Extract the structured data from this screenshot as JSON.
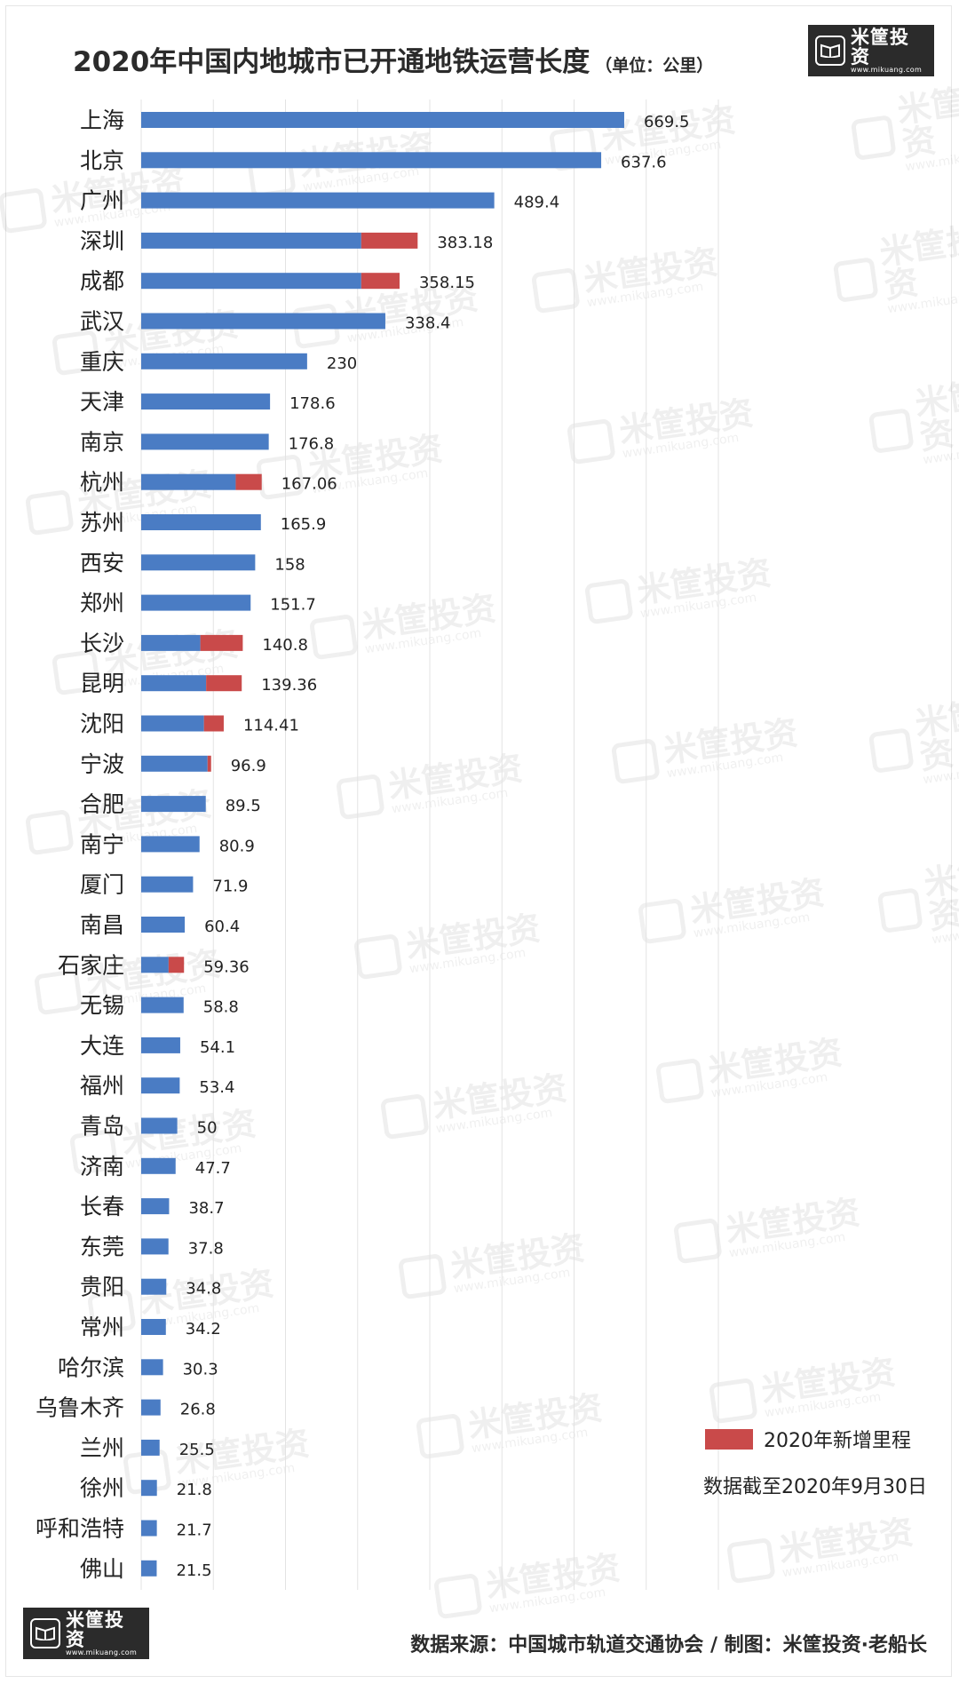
{
  "header": {
    "title": "2020年中国内地城市已开通地铁运营长度",
    "unit": "（单位：公里）"
  },
  "logo": {
    "name": "米筐投资",
    "url": "www.mikuang.com"
  },
  "watermark": {
    "name": "米筐投资",
    "url": "www.mikuang.com"
  },
  "legend": {
    "new_label": "2020年新增里程"
  },
  "footer": {
    "note": "数据截至2020年9月30日",
    "source": "数据来源：中国城市轨道交通协会 / 制图：米筐投资·老船长"
  },
  "colors": {
    "base": "#4a7cc4",
    "new": "#c94a4a",
    "grid": "#e3e3e3"
  },
  "chart_data": {
    "type": "bar",
    "orientation": "horizontal",
    "stacked": true,
    "title": "2020年中国内地城市已开通地铁运营长度",
    "xlim": [
      0,
      800
    ],
    "grid": true,
    "legend_position": "bottom-right",
    "categories": [
      "上海",
      "北京",
      "广州",
      "深圳",
      "成都",
      "武汉",
      "重庆",
      "天津",
      "南京",
      "杭州",
      "苏州",
      "西安",
      "郑州",
      "长沙",
      "昆明",
      "沈阳",
      "宁波",
      "合肥",
      "南宁",
      "厦门",
      "南昌",
      "石家庄",
      "无锡",
      "大连",
      "福州",
      "青岛",
      "济南",
      "长春",
      "东莞",
      "贵阳",
      "常州",
      "哈尔滨",
      "乌鲁木齐",
      "兰州",
      "徐州",
      "呼和浩特",
      "佛山"
    ],
    "totals": [
      669.5,
      637.6,
      489.4,
      383.18,
      358.15,
      338.4,
      230,
      178.6,
      176.8,
      167.06,
      165.9,
      158,
      151.7,
      140.8,
      139.36,
      114.41,
      96.9,
      89.5,
      80.9,
      71.9,
      60.4,
      59.36,
      58.8,
      54.1,
      53.4,
      50,
      47.7,
      38.7,
      37.8,
      34.8,
      34.2,
      30.3,
      26.8,
      25.5,
      21.8,
      21.7,
      21.5
    ],
    "total_labels": [
      "669.5",
      "637.6",
      "489.4",
      "383.18",
      "358.15",
      "338.4",
      "230",
      "178.6",
      "176.8",
      "167.06",
      "165.9",
      "158",
      "151.7",
      "140.8",
      "139.36",
      "114.41",
      "96.9",
      "89.5",
      "80.9",
      "71.9",
      "60.4",
      "59.36",
      "58.8",
      "54.1",
      "53.4",
      "50",
      "47.7",
      "38.7",
      "37.8",
      "34.8",
      "34.2",
      "30.3",
      "26.8",
      "25.5",
      "21.8",
      "21.7",
      "21.5"
    ],
    "series": [
      {
        "name": "",
        "values": [
          669.5,
          637.6,
          489.4,
          305,
          305,
          338.4,
          230,
          178.6,
          176.8,
          131,
          165.9,
          158,
          151.7,
          82,
          90,
          87,
          92,
          89.5,
          80.9,
          71.9,
          60.4,
          38,
          58.8,
          54.1,
          53.4,
          50,
          47.7,
          38.7,
          37.8,
          34.8,
          34.2,
          30.3,
          26.8,
          25.5,
          21.8,
          21.7,
          21.5
        ]
      },
      {
        "name": "2020年新增里程",
        "values": [
          0,
          0,
          0,
          78.18,
          53.15,
          0,
          0,
          0,
          0,
          36.06,
          0,
          0,
          0,
          58.8,
          49.36,
          27.41,
          4.9,
          0,
          0,
          0,
          0,
          21.36,
          0,
          0,
          0,
          0,
          0,
          0,
          0,
          0,
          0,
          0,
          0,
          0,
          0,
          0,
          0
        ]
      }
    ]
  }
}
